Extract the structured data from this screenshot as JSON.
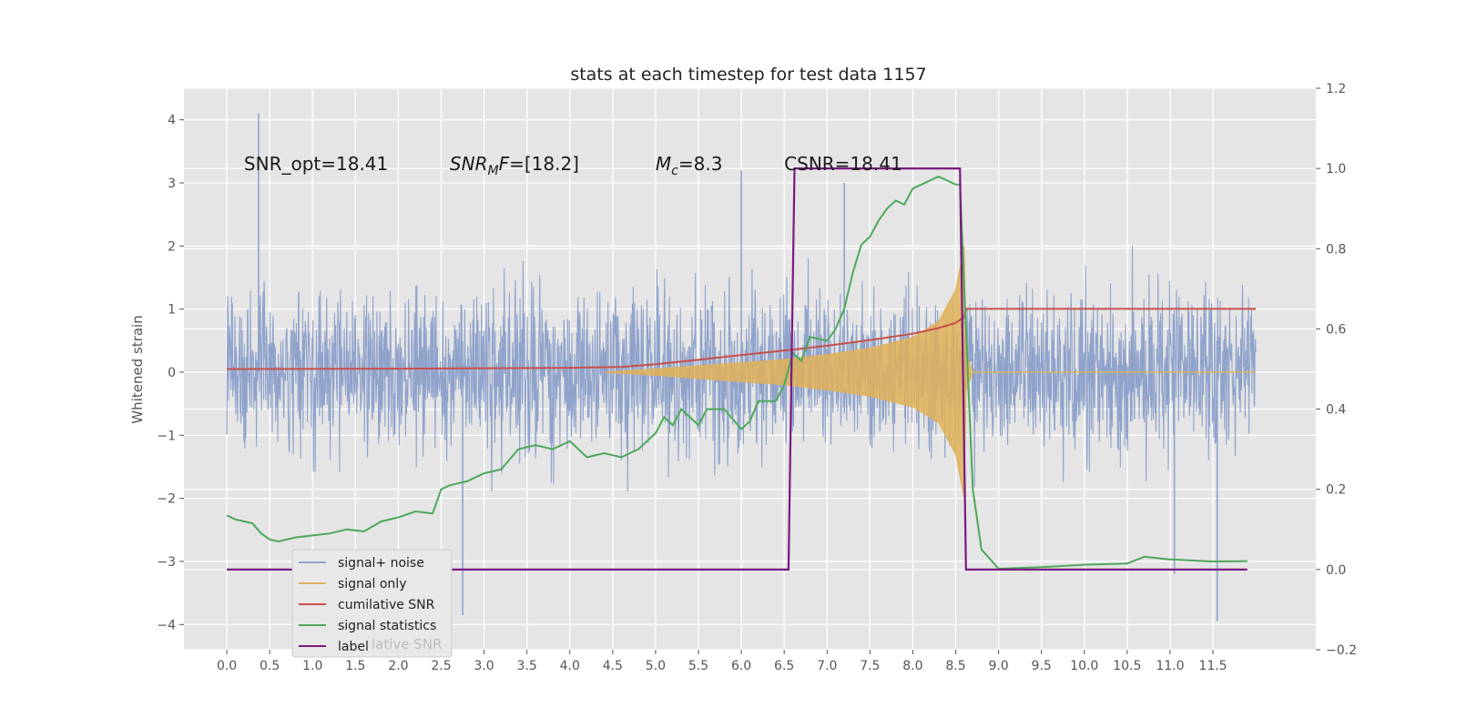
{
  "chart_data": {
    "type": "line",
    "title": "stats at each timestep for test data 1157",
    "ylabel": "Whitened strain",
    "xlim": [
      -0.5,
      12.7
    ],
    "ylim": [
      -4.4,
      4.5
    ],
    "y2lim": [
      -0.2,
      1.2
    ],
    "x_ticks": [
      "0.0",
      "0.5",
      "1.0",
      "1.5",
      "2.0",
      "2.5",
      "3.0",
      "3.5",
      "4.0",
      "4.5",
      "5.0",
      "5.5",
      "6.0",
      "6.5",
      "7.0",
      "7.5",
      "8.0",
      "8.5",
      "9.0",
      "9.5",
      "10.0",
      "10.5",
      "11.0",
      "11.5"
    ],
    "y_ticks": [
      "4",
      "3",
      "2",
      "1",
      "0",
      "−1",
      "−2",
      "−3",
      "−4"
    ],
    "y2_ticks": [
      "1.2",
      "1.0",
      "0.8",
      "0.6",
      "0.4",
      "0.2",
      "0.0",
      "−0.2"
    ],
    "grid": true,
    "annotations": [
      {
        "text": "SNR_opt=18.41",
        "x": 0.2,
        "y": 3.3
      },
      {
        "text": "SNR_MF=[18.2]",
        "x": 2.6,
        "y": 3.3
      },
      {
        "text": "M_c=8.3",
        "x": 5.0,
        "y": 3.3
      },
      {
        "text": "CSNR=18.41",
        "x": 6.5,
        "y": 3.3
      }
    ],
    "legend": {
      "placement": "lower-left",
      "entries": [
        "signal+ noise",
        "signal only",
        "cumilative SNR",
        "signal statistics",
        "label"
      ],
      "ghost_text": "lative SNR"
    },
    "colors": {
      "noise": "#8fa3cb",
      "signal": "#e0b258",
      "csnr": "#c8504a",
      "stat": "#4ea85c",
      "label": "#7a1a80"
    },
    "series": [
      {
        "name": "signal+ noise",
        "axis": "left",
        "style": "dense-noise",
        "x_range": [
          0.0,
          12.0
        ],
        "envelope_y": [
          -2.2,
          2.2
        ],
        "peaks": [
          {
            "x": 0.37,
            "y": 4.1
          },
          {
            "x": 2.75,
            "y": -3.85
          },
          {
            "x": 6.0,
            "y": 3.2
          },
          {
            "x": 7.2,
            "y": 3.0
          },
          {
            "x": 11.55,
            "y": -3.95
          },
          {
            "x": 11.05,
            "y": -3.2
          }
        ]
      },
      {
        "name": "signal only",
        "axis": "left",
        "style": "chirp-envelope",
        "x": [
          4.4,
          5.0,
          5.5,
          6.0,
          6.5,
          7.0,
          7.5,
          8.0,
          8.3,
          8.5,
          8.6,
          8.62,
          8.7,
          12.0
        ],
        "upper": [
          0.0,
          0.05,
          0.1,
          0.15,
          0.2,
          0.28,
          0.38,
          0.55,
          0.8,
          1.3,
          2.0,
          0.3,
          0.0,
          0.0
        ],
        "lower": [
          0.0,
          -0.05,
          -0.1,
          -0.15,
          -0.2,
          -0.28,
          -0.38,
          -0.55,
          -0.8,
          -1.3,
          -2.0,
          -0.3,
          0.0,
          0.0
        ]
      },
      {
        "name": "cumilative SNR",
        "axis": "right",
        "x": [
          0.0,
          2.0,
          4.0,
          4.6,
          5.0,
          5.5,
          6.0,
          6.5,
          7.0,
          7.5,
          8.0,
          8.3,
          8.5,
          8.6,
          8.62,
          12.0
        ],
        "y": [
          0.5,
          0.501,
          0.503,
          0.505,
          0.512,
          0.523,
          0.535,
          0.546,
          0.558,
          0.572,
          0.588,
          0.602,
          0.615,
          0.63,
          0.65,
          0.65
        ]
      },
      {
        "name": "signal statistics",
        "axis": "right",
        "x": [
          0.0,
          0.1,
          0.2,
          0.3,
          0.4,
          0.5,
          0.6,
          0.8,
          1.0,
          1.2,
          1.4,
          1.6,
          1.8,
          2.0,
          2.2,
          2.4,
          2.5,
          2.6,
          2.8,
          3.0,
          3.2,
          3.4,
          3.6,
          3.8,
          4.0,
          4.2,
          4.4,
          4.6,
          4.8,
          5.0,
          5.1,
          5.2,
          5.3,
          5.4,
          5.5,
          5.6,
          5.8,
          6.0,
          6.1,
          6.2,
          6.4,
          6.5,
          6.6,
          6.7,
          6.8,
          7.0,
          7.1,
          7.2,
          7.3,
          7.4,
          7.5,
          7.6,
          7.7,
          7.8,
          7.9,
          8.0,
          8.2,
          8.3,
          8.4,
          8.5,
          8.55,
          8.6,
          8.7,
          8.8,
          9.0,
          9.5,
          10.0,
          10.5,
          10.7,
          11.0,
          11.5,
          11.9
        ],
        "y": [
          0.135,
          0.125,
          0.12,
          0.115,
          0.09,
          0.075,
          0.07,
          0.08,
          0.085,
          0.09,
          0.1,
          0.095,
          0.12,
          0.13,
          0.145,
          0.14,
          0.2,
          0.21,
          0.22,
          0.24,
          0.25,
          0.3,
          0.31,
          0.3,
          0.32,
          0.28,
          0.29,
          0.28,
          0.3,
          0.34,
          0.38,
          0.36,
          0.4,
          0.38,
          0.36,
          0.4,
          0.4,
          0.35,
          0.37,
          0.42,
          0.42,
          0.46,
          0.54,
          0.52,
          0.58,
          0.57,
          0.6,
          0.65,
          0.74,
          0.81,
          0.83,
          0.87,
          0.9,
          0.92,
          0.91,
          0.95,
          0.97,
          0.98,
          0.97,
          0.96,
          0.96,
          0.7,
          0.2,
          0.05,
          0.002,
          0.006,
          0.012,
          0.015,
          0.032,
          0.025,
          0.02,
          0.021
        ]
      },
      {
        "name": "label",
        "axis": "right",
        "x": [
          0.0,
          6.55,
          6.62,
          8.55,
          8.62,
          11.9
        ],
        "y": [
          0.0,
          0.0,
          1.0,
          1.0,
          0.0,
          0.0
        ]
      }
    ]
  }
}
